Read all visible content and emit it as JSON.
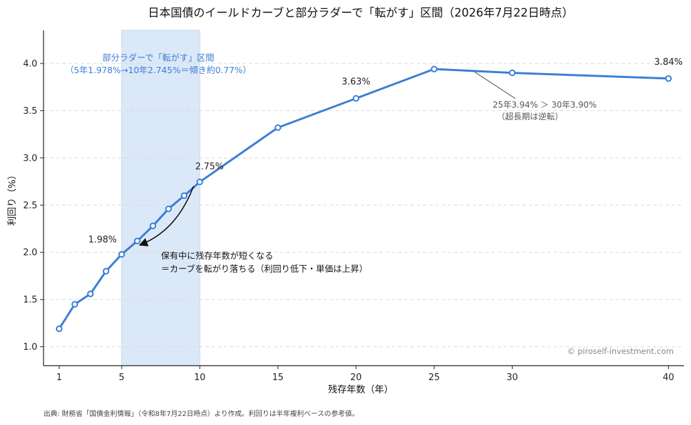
{
  "chart_data": {
    "type": "line",
    "title": "日本国債のイールドカーブと部分ラダーで「転がす」区間（2026年7月22日時点）",
    "xlabel": "残存年数（年）",
    "ylabel": "利回り（%）",
    "xlim": [
      0.0,
      41.0
    ],
    "ylim": [
      0.8,
      4.35
    ],
    "xticks": [
      1,
      5,
      10,
      15,
      20,
      25,
      30,
      40
    ],
    "yticks": [
      1.0,
      1.5,
      2.0,
      2.5,
      3.0,
      3.5,
      4.0
    ],
    "ytick_labels": [
      "1.0",
      "1.5",
      "2.0",
      "2.5",
      "3.0",
      "3.5",
      "4.0"
    ],
    "grid": "horizontal dashed",
    "series": [
      {
        "x": [
          1,
          2,
          3,
          4,
          5,
          6,
          7,
          8,
          9,
          10,
          15,
          20,
          25,
          30,
          40
        ],
        "values": [
          1.19,
          1.45,
          1.56,
          1.8,
          1.978,
          2.12,
          2.28,
          2.46,
          2.6,
          2.745,
          3.32,
          3.63,
          3.94,
          3.9,
          3.84
        ],
        "color": "#3a7fd5"
      }
    ],
    "shaded_region": {
      "x_from": 5,
      "x_to": 10,
      "color": "#dbe8f8",
      "label_line1": "部分ラダーで「転がす」区間",
      "label_line2": "（5年1.978%→10年2.745%＝傾き約0.77%）",
      "label_color": "#3a7fd5"
    },
    "point_labels": [
      {
        "x": 5,
        "y": 1.978,
        "text": "1.98%"
      },
      {
        "x": 10,
        "y": 2.745,
        "text": "2.75%"
      },
      {
        "x": 20,
        "y": 3.63,
        "text": "3.63%"
      },
      {
        "x": 40,
        "y": 3.84,
        "text": "3.84%"
      }
    ],
    "annotations": [
      {
        "text_lines": [
          "保有中に残存年数が短くなる",
          "＝カーブを転がり落ちる（利回り低下・単価は上昇）"
        ],
        "arrow_from": [
          9.6,
          2.7
        ],
        "arrow_to": [
          6.2,
          2.08
        ]
      },
      {
        "text_lines": [
          "25年3.94% ＞ 30年3.90%",
          "（超長期は逆転）"
        ],
        "pointer_to": [
          27.5,
          3.92
        ]
      }
    ],
    "watermark": "© piroself-investment.com",
    "source_note": "出典: 財務省「国債金利情報」（令和8年7月22日時点）より作成。利回りは半年複利ベースの参考値。"
  }
}
